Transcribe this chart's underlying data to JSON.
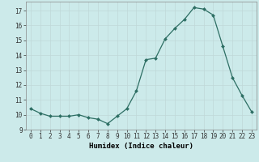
{
  "x": [
    0,
    1,
    2,
    3,
    4,
    5,
    6,
    7,
    8,
    9,
    10,
    11,
    12,
    13,
    14,
    15,
    16,
    17,
    18,
    19,
    20,
    21,
    22,
    23
  ],
  "y": [
    10.4,
    10.1,
    9.9,
    9.9,
    9.9,
    10.0,
    9.8,
    9.7,
    9.4,
    9.9,
    10.4,
    11.6,
    13.7,
    13.8,
    15.1,
    15.8,
    16.4,
    17.2,
    17.1,
    16.7,
    14.6,
    12.5,
    11.3,
    10.2
  ],
  "xlabel": "Humidex (Indice chaleur)",
  "ylim": [
    9.0,
    17.6
  ],
  "yticks": [
    9,
    10,
    11,
    12,
    13,
    14,
    15,
    16,
    17
  ],
  "xlim": [
    -0.5,
    23.5
  ],
  "line_color": "#2d6e63",
  "bg_color": "#cceaea",
  "grid_color_major": "#c0d8d8",
  "grid_color_minor": "#daeaea",
  "tick_fontsize": 5.5,
  "label_fontsize": 6.5
}
